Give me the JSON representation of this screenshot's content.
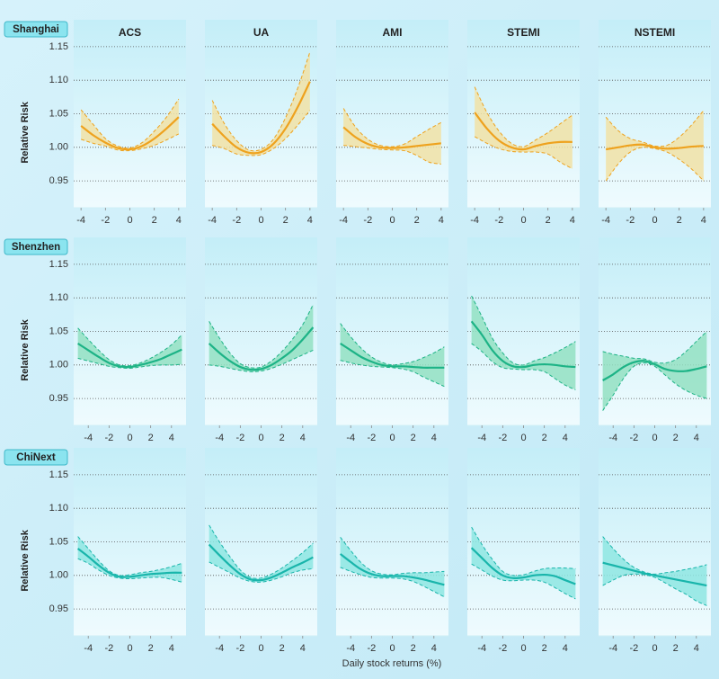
{
  "row_labels": [
    "Shanghai",
    "Shenzhen",
    "ChiNext"
  ],
  "column_titles": [
    "ACS",
    "UA",
    "AMI",
    "STEMI",
    "NSTEMI"
  ],
  "y_label": "Relative Risk",
  "x_label": "Daily stock returns (%)",
  "chart_data": [
    {
      "type": "line",
      "color": "#eea21e",
      "band_color": "#f1e2a6",
      "x": [
        -4,
        -3,
        -2,
        -1,
        0,
        1,
        2,
        3,
        4
      ],
      "xlim": [
        -4.6,
        4.6
      ],
      "xticks": [
        -4,
        -2,
        0,
        2,
        4
      ],
      "ylim": [
        0.91,
        1.19
      ],
      "yticks": [
        0.95,
        {
          "value": 1,
          "label": "1.00"
        },
        1.05,
        {
          "value": 1.1,
          "label": "1.10"
        },
        1.15
      ],
      "values": [
        1.032,
        1.018,
        1.007,
        0.999,
        0.997,
        1.002,
        1.013,
        1.028,
        1.045
      ],
      "lower": [
        1.012,
        1.006,
        1.002,
        0.996,
        0.995,
        0.998,
        1.003,
        1.011,
        1.02
      ],
      "upper": [
        1.056,
        1.034,
        1.013,
        1.002,
        0.999,
        1.007,
        1.024,
        1.045,
        1.072
      ]
    },
    {
      "type": "line",
      "color": "#eea21e",
      "band_color": "#f1e2a6",
      "x": [
        -4,
        -3,
        -2,
        -1,
        0,
        1,
        2,
        3,
        4
      ],
      "xlim": [
        -4.6,
        4.6
      ],
      "xticks": [
        -4,
        -2,
        0,
        2,
        4
      ],
      "ylim": [
        0.91,
        1.19
      ],
      "yticks": [
        0.95,
        1,
        1.05,
        1.1,
        1.15
      ],
      "values": [
        1.035,
        1.016,
        1.0,
        0.992,
        0.993,
        1.005,
        1.028,
        1.06,
        1.098
      ],
      "lower": [
        1.003,
        0.998,
        0.99,
        0.988,
        0.989,
        0.998,
        1.013,
        1.033,
        1.055
      ],
      "upper": [
        1.07,
        1.035,
        1.01,
        0.996,
        0.997,
        1.012,
        1.044,
        1.088,
        1.142
      ]
    },
    {
      "type": "line",
      "color": "#eea21e",
      "band_color": "#f1e2a6",
      "x": [
        -4,
        -3,
        -2,
        -1,
        0,
        1,
        2,
        3,
        4
      ],
      "xlim": [
        -4.6,
        4.6
      ],
      "xticks": [
        -4,
        -2,
        0,
        2,
        4
      ],
      "ylim": [
        0.91,
        1.19
      ],
      "yticks": [
        0.95,
        1,
        1.05,
        1.1,
        1.15
      ],
      "values": [
        1.03,
        1.015,
        1.005,
        1.0,
        0.999,
        1.0,
        1.002,
        1.004,
        1.006
      ],
      "lower": [
        1.003,
        1.001,
        0.999,
        0.997,
        0.996,
        0.995,
        0.988,
        0.978,
        0.975
      ],
      "upper": [
        1.058,
        1.03,
        1.012,
        1.003,
        1.001,
        1.005,
        1.016,
        1.027,
        1.037
      ]
    },
    {
      "type": "line",
      "color": "#eea21e",
      "band_color": "#f1e2a6",
      "x": [
        -4,
        -3,
        -2,
        -1,
        0,
        1,
        2,
        3,
        4
      ],
      "xlim": [
        -4.6,
        4.6
      ],
      "xticks": [
        -4,
        -2,
        0,
        2,
        4
      ],
      "ylim": [
        0.91,
        1.19
      ],
      "yticks": [
        0.95,
        1,
        1.05,
        1.1,
        1.15
      ],
      "values": [
        1.052,
        1.028,
        1.01,
        1.0,
        0.997,
        1.002,
        1.006,
        1.008,
        1.008
      ],
      "lower": [
        1.016,
        1.006,
        0.998,
        0.994,
        0.993,
        0.993,
        0.99,
        0.978,
        0.968
      ],
      "upper": [
        1.09,
        1.052,
        1.024,
        1.006,
        1.001,
        1.011,
        1.022,
        1.035,
        1.048
      ]
    },
    {
      "type": "line",
      "color": "#eea21e",
      "band_color": "#f1e2a6",
      "x": [
        -4,
        -3,
        -2,
        -1,
        0,
        1,
        2,
        3,
        4
      ],
      "xlim": [
        -4.6,
        4.6
      ],
      "xticks": [
        -4,
        -2,
        0,
        2,
        4
      ],
      "ylim": [
        0.91,
        1.19
      ],
      "yticks": [
        0.95,
        1,
        1.05,
        1.1,
        1.15
      ],
      "values": [
        0.997,
        1.0,
        1.003,
        1.004,
        1.0,
        0.998,
        0.999,
        1.001,
        1.002
      ],
      "lower": [
        0.95,
        0.975,
        0.993,
        1.0,
        0.998,
        0.993,
        0.982,
        0.968,
        0.95
      ],
      "upper": [
        1.045,
        1.025,
        1.013,
        1.008,
        1.002,
        1.003,
        1.015,
        1.033,
        1.055
      ]
    },
    {
      "type": "line",
      "color": "#1db386",
      "band_color": "#93e0c2",
      "x": [
        -5,
        -4,
        -3,
        -2,
        -1,
        0,
        1,
        2,
        3,
        4,
        5
      ],
      "xlim": [
        -5.4,
        5.4
      ],
      "xticks": [
        -4,
        -2,
        0,
        2,
        4
      ],
      "ylim": [
        0.91,
        1.19
      ],
      "yticks": [
        0.95,
        {
          "value": 1,
          "label": "1.00"
        },
        1.05,
        {
          "value": 1.1,
          "label": "1.10"
        },
        1.15
      ],
      "values": [
        1.032,
        1.022,
        1.012,
        1.003,
        0.998,
        0.997,
        1.0,
        1.004,
        1.009,
        1.016,
        1.023
      ],
      "lower": [
        1.01,
        1.006,
        1.002,
        0.998,
        0.996,
        0.995,
        0.997,
        0.999,
        1.0,
        1.0,
        1.001
      ],
      "upper": [
        1.055,
        1.038,
        1.022,
        1.008,
        1.0,
        0.999,
        1.003,
        1.01,
        1.019,
        1.03,
        1.045
      ]
    },
    {
      "type": "line",
      "color": "#1db386",
      "band_color": "#93e0c2",
      "x": [
        -5,
        -4,
        -3,
        -2,
        -1,
        0,
        1,
        2,
        3,
        4,
        5
      ],
      "xlim": [
        -5.4,
        5.4
      ],
      "xticks": [
        -4,
        -2,
        0,
        2,
        4
      ],
      "ylim": [
        0.91,
        1.19
      ],
      "yticks": [
        0.95,
        1,
        1.05,
        1.1,
        1.15
      ],
      "values": [
        1.032,
        1.018,
        1.006,
        0.997,
        0.993,
        0.994,
        1.0,
        1.01,
        1.022,
        1.038,
        1.056
      ],
      "lower": [
        1.0,
        0.998,
        0.995,
        0.992,
        0.99,
        0.991,
        0.995,
        1.001,
        1.008,
        1.015,
        1.022
      ],
      "upper": [
        1.065,
        1.04,
        1.018,
        1.002,
        0.996,
        0.997,
        1.006,
        1.02,
        1.038,
        1.06,
        1.09
      ]
    },
    {
      "type": "line",
      "color": "#1db386",
      "band_color": "#93e0c2",
      "x": [
        -5,
        -4,
        -3,
        -2,
        -1,
        0,
        1,
        2,
        3,
        4,
        5
      ],
      "xlim": [
        -5.4,
        5.4
      ],
      "xticks": [
        -4,
        -2,
        0,
        2,
        4
      ],
      "ylim": [
        0.91,
        1.19
      ],
      "yticks": [
        0.95,
        1,
        1.05,
        1.1,
        1.15
      ],
      "values": [
        1.032,
        1.022,
        1.012,
        1.005,
        1.0,
        0.998,
        0.998,
        0.997,
        0.996,
        0.996,
        0.996
      ],
      "lower": [
        1.007,
        1.003,
        1.0,
        0.998,
        0.997,
        0.996,
        0.994,
        0.99,
        0.982,
        0.975,
        0.968
      ],
      "upper": [
        1.062,
        1.042,
        1.025,
        1.012,
        1.004,
        1.0,
        1.002,
        1.005,
        1.011,
        1.018,
        1.027
      ]
    },
    {
      "type": "line",
      "color": "#1db386",
      "band_color": "#93e0c2",
      "x": [
        -5,
        -4,
        -3,
        -2,
        -1,
        0,
        1,
        2,
        3,
        4,
        5
      ],
      "xlim": [
        -5.4,
        5.4
      ],
      "xticks": [
        -4,
        -2,
        0,
        2,
        4
      ],
      "ylim": [
        0.91,
        1.19
      ],
      "yticks": [
        0.95,
        1,
        1.05,
        1.1,
        1.15
      ],
      "values": [
        1.065,
        1.045,
        1.022,
        1.006,
        0.998,
        0.997,
        1.0,
        1.001,
        1.0,
        0.998,
        0.997
      ],
      "lower": [
        1.032,
        1.02,
        1.005,
        0.996,
        0.994,
        0.993,
        0.993,
        0.99,
        0.98,
        0.97,
        0.963
      ],
      "upper": [
        1.103,
        1.072,
        1.04,
        1.018,
        1.003,
        1.0,
        1.006,
        1.011,
        1.018,
        1.026,
        1.035
      ]
    },
    {
      "type": "line",
      "color": "#1db386",
      "band_color": "#93e0c2",
      "x": [
        -5,
        -4,
        -3,
        -2,
        -1,
        0,
        1,
        2,
        3,
        4,
        5
      ],
      "xlim": [
        -5.4,
        5.4
      ],
      "xticks": [
        -4,
        -2,
        0,
        2,
        4
      ],
      "ylim": [
        0.91,
        1.19
      ],
      "yticks": [
        0.95,
        1,
        1.05,
        1.1,
        1.15
      ],
      "values": [
        0.977,
        0.986,
        0.997,
        1.004,
        1.006,
        1.001,
        0.994,
        0.991,
        0.991,
        0.994,
        0.998
      ],
      "lower": [
        0.932,
        0.955,
        0.98,
        0.998,
        1.003,
        0.998,
        0.985,
        0.972,
        0.962,
        0.955,
        0.95
      ],
      "upper": [
        1.02,
        1.016,
        1.013,
        1.01,
        1.009,
        1.004,
        1.003,
        1.008,
        1.02,
        1.035,
        1.05
      ]
    },
    {
      "type": "line",
      "color": "#19b5ab",
      "band_color": "#8ee6e2",
      "x": [
        -5,
        -4,
        -3,
        -2,
        -1,
        0,
        1,
        2,
        3,
        4,
        5
      ],
      "xlim": [
        -5.4,
        5.4
      ],
      "xticks": [
        -4,
        -2,
        0,
        2,
        4
      ],
      "ylim": [
        0.91,
        1.19
      ],
      "yticks": [
        0.95,
        {
          "value": 1,
          "label": "1.00"
        },
        1.05,
        {
          "value": 1.1,
          "label": "1.10"
        },
        1.15
      ],
      "values": [
        1.04,
        1.028,
        1.015,
        1.004,
        0.998,
        0.998,
        1.0,
        1.002,
        1.003,
        1.004,
        1.004
      ],
      "lower": [
        1.025,
        1.018,
        1.008,
        1.0,
        0.996,
        0.995,
        0.996,
        0.997,
        0.997,
        0.994,
        0.99
      ],
      "upper": [
        1.058,
        1.04,
        1.022,
        1.007,
        1.0,
        1.001,
        1.004,
        1.006,
        1.009,
        1.013,
        1.018
      ]
    },
    {
      "type": "line",
      "color": "#19b5ab",
      "band_color": "#8ee6e2",
      "x": [
        -5,
        -4,
        -3,
        -2,
        -1,
        0,
        1,
        2,
        3,
        4,
        5
      ],
      "xlim": [
        -5.4,
        5.4
      ],
      "xticks": [
        -4,
        -2,
        0,
        2,
        4
      ],
      "ylim": [
        0.91,
        1.19
      ],
      "yticks": [
        0.95,
        1,
        1.05,
        1.1,
        1.15
      ],
      "values": [
        1.046,
        1.03,
        1.015,
        1.002,
        0.994,
        0.993,
        0.997,
        1.004,
        1.012,
        1.019,
        1.027
      ],
      "lower": [
        1.02,
        1.012,
        1.004,
        0.996,
        0.991,
        0.99,
        0.993,
        0.998,
        1.004,
        1.008,
        1.01
      ],
      "upper": [
        1.075,
        1.05,
        1.028,
        1.008,
        0.997,
        0.996,
        1.002,
        1.011,
        1.022,
        1.034,
        1.048
      ]
    },
    {
      "type": "line",
      "color": "#19b5ab",
      "band_color": "#8ee6e2",
      "x": [
        -5,
        -4,
        -3,
        -2,
        -1,
        0,
        1,
        2,
        3,
        4,
        5
      ],
      "xlim": [
        -5.4,
        5.4
      ],
      "xticks": [
        -4,
        -2,
        0,
        2,
        4
      ],
      "ylim": [
        0.91,
        1.19
      ],
      "yticks": [
        0.95,
        1,
        1.05,
        1.1,
        1.15
      ],
      "values": [
        1.032,
        1.02,
        1.009,
        1.002,
        0.999,
        0.999,
        0.999,
        0.997,
        0.994,
        0.99,
        0.986
      ],
      "lower": [
        1.012,
        1.006,
        1.001,
        0.997,
        0.996,
        0.996,
        0.995,
        0.991,
        0.984,
        0.976,
        0.968
      ],
      "upper": [
        1.057,
        1.037,
        1.019,
        1.007,
        1.002,
        1.001,
        1.003,
        1.004,
        1.004,
        1.005,
        1.006
      ]
    },
    {
      "type": "line",
      "color": "#19b5ab",
      "band_color": "#8ee6e2",
      "x": [
        -5,
        -4,
        -3,
        -2,
        -1,
        0,
        1,
        2,
        3,
        4,
        5
      ],
      "xlim": [
        -5.4,
        5.4
      ],
      "xticks": [
        -4,
        -2,
        0,
        2,
        4
      ],
      "ylim": [
        0.91,
        1.19
      ],
      "yticks": [
        0.95,
        1,
        1.05,
        1.1,
        1.15
      ],
      "values": [
        1.041,
        1.026,
        1.011,
        1.0,
        0.996,
        0.997,
        1.0,
        1.001,
        0.999,
        0.993,
        0.987
      ],
      "lower": [
        1.017,
        1.008,
        0.999,
        0.993,
        0.992,
        0.993,
        0.993,
        0.99,
        0.982,
        0.973,
        0.965
      ],
      "upper": [
        1.072,
        1.046,
        1.024,
        1.006,
        1.0,
        1.001,
        1.006,
        1.01,
        1.011,
        1.011,
        1.01
      ]
    },
    {
      "type": "line",
      "color": "#19b5ab",
      "band_color": "#8ee6e2",
      "x": [
        -5,
        -4,
        -3,
        -2,
        -1,
        0,
        1,
        2,
        3,
        4,
        5
      ],
      "xlim": [
        -5.4,
        5.4
      ],
      "xticks": [
        -4,
        -2,
        0,
        2,
        4
      ],
      "ylim": [
        0.91,
        1.19
      ],
      "yticks": [
        0.95,
        1,
        1.05,
        1.1,
        1.15
      ],
      "values": [
        1.019,
        1.015,
        1.011,
        1.007,
        1.003,
        1.0,
        0.997,
        0.994,
        0.991,
        0.988,
        0.985
      ],
      "lower": [
        0.985,
        0.993,
        1.0,
        1.002,
        1.001,
        0.997,
        0.989,
        0.98,
        0.972,
        0.962,
        0.955
      ],
      "upper": [
        1.058,
        1.04,
        1.024,
        1.012,
        1.005,
        1.002,
        1.004,
        1.006,
        1.009,
        1.012,
        1.016
      ]
    }
  ]
}
